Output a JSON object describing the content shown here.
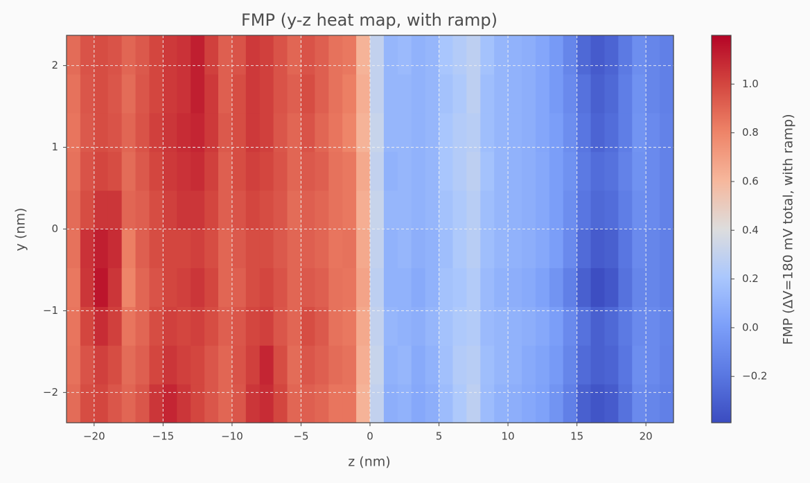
{
  "chart_data": {
    "type": "heatmap",
    "title": "FMP (y-z heat map, with ramp)",
    "x_label": "z (nm)",
    "y_label": "y (nm)",
    "colorbar_label": "FMP (ΔV=180 mV total, with ramp)",
    "colormap": "coolwarm",
    "grid": true,
    "xlim": [
      -22,
      22
    ],
    "ylim": [
      -2.37,
      2.37
    ],
    "clim": [
      -0.39,
      1.2
    ],
    "xticks": [
      {
        "value": -20,
        "label": "−20"
      },
      {
        "value": -15,
        "label": "−15"
      },
      {
        "value": -10,
        "label": "−10"
      },
      {
        "value": -5,
        "label": "−5"
      },
      0,
      5,
      10,
      15,
      20
    ],
    "yticks": [
      {
        "value": -2,
        "label": "−2"
      },
      {
        "value": -1,
        "label": "−1"
      },
      0,
      1,
      2
    ],
    "cticks": [
      {
        "value": -0.2,
        "label": "−0.2"
      },
      {
        "value": 0,
        "label": "0.0"
      },
      0.2,
      0.4,
      0.6,
      0.8,
      {
        "value": 1,
        "label": "1.0"
      }
    ],
    "x": [
      -21.5,
      -20.5,
      -19.5,
      -18.5,
      -17.5,
      -16.5,
      -15.5,
      -14.5,
      -13.5,
      -12.5,
      -11.5,
      -10.5,
      -9.5,
      -8.5,
      -7.5,
      -6.5,
      -5.5,
      -4.5,
      -3.5,
      -2.5,
      -1.5,
      -0.5,
      0.5,
      1.5,
      2.5,
      3.5,
      4.5,
      5.5,
      6.5,
      7.5,
      8.5,
      9.5,
      10.5,
      11.5,
      12.5,
      13.5,
      14.5,
      15.5,
      16.5,
      17.5,
      18.5,
      19.5,
      20.5,
      21.5
    ],
    "y": [
      -2.133,
      -1.659,
      -1.185,
      -0.711,
      -0.237,
      0.237,
      0.711,
      1.185,
      1.659,
      2.133
    ],
    "values": [
      [
        0.88,
        0.98,
        1.0,
        0.95,
        0.9,
        0.95,
        1.05,
        1.1,
        1.05,
        1.0,
        0.95,
        0.9,
        0.95,
        1.05,
        1.08,
        1.0,
        0.9,
        0.92,
        0.9,
        0.85,
        0.85,
        0.62,
        0.3,
        0.08,
        0.1,
        0.05,
        0.08,
        0.15,
        0.22,
        0.28,
        0.15,
        0.1,
        0.08,
        0.05,
        0.02,
        -0.05,
        -0.15,
        -0.3,
        -0.35,
        -0.32,
        -0.22,
        -0.1,
        -0.12,
        -0.15
      ],
      [
        0.86,
        0.96,
        1.02,
        0.98,
        0.88,
        0.92,
        1.0,
        1.05,
        1.02,
        1.0,
        0.95,
        0.9,
        0.96,
        1.02,
        1.1,
        0.98,
        0.88,
        0.95,
        0.92,
        0.88,
        0.86,
        0.64,
        0.32,
        0.1,
        0.12,
        0.06,
        0.1,
        0.17,
        0.24,
        0.26,
        0.16,
        0.12,
        0.1,
        0.06,
        0.03,
        -0.02,
        -0.12,
        -0.25,
        -0.3,
        -0.28,
        -0.2,
        -0.08,
        -0.1,
        -0.14
      ],
      [
        0.85,
        1.0,
        1.08,
        1.02,
        0.85,
        0.9,
        0.98,
        1.02,
        1.0,
        1.02,
        0.98,
        0.92,
        0.95,
        1.0,
        1.02,
        0.95,
        0.9,
        0.98,
        0.94,
        0.86,
        0.84,
        0.66,
        0.3,
        0.12,
        0.1,
        0.08,
        0.12,
        0.18,
        0.22,
        0.24,
        0.14,
        0.12,
        0.1,
        0.08,
        0.05,
        0.0,
        -0.1,
        -0.22,
        -0.3,
        -0.26,
        -0.18,
        -0.1,
        -0.1,
        -0.13
      ],
      [
        0.84,
        1.05,
        1.15,
        1.05,
        0.8,
        0.9,
        0.96,
        1.0,
        1.02,
        1.05,
        1.0,
        0.9,
        0.92,
        0.98,
        1.0,
        0.96,
        0.9,
        0.94,
        0.92,
        0.86,
        0.85,
        0.68,
        0.28,
        0.1,
        0.1,
        0.06,
        0.1,
        0.18,
        0.2,
        0.24,
        0.14,
        0.1,
        0.08,
        0.06,
        0.02,
        -0.05,
        -0.15,
        -0.3,
        -0.38,
        -0.34,
        -0.22,
        -0.12,
        -0.12,
        -0.15
      ],
      [
        0.86,
        1.06,
        1.12,
        1.08,
        0.82,
        0.92,
        0.98,
        1.0,
        1.0,
        1.02,
        0.98,
        0.9,
        0.94,
        0.98,
        0.98,
        0.94,
        0.9,
        0.92,
        0.9,
        0.85,
        0.86,
        0.66,
        0.3,
        0.1,
        0.12,
        0.08,
        0.1,
        0.16,
        0.22,
        0.26,
        0.16,
        0.12,
        0.1,
        0.08,
        0.05,
        0.0,
        -0.1,
        -0.25,
        -0.32,
        -0.3,
        -0.2,
        -0.1,
        -0.12,
        -0.15
      ],
      [
        0.88,
        0.98,
        1.05,
        1.05,
        0.9,
        0.92,
        0.98,
        1.02,
        1.05,
        1.05,
        1.0,
        0.92,
        0.96,
        1.0,
        0.98,
        0.95,
        0.88,
        0.92,
        0.9,
        0.86,
        0.84,
        0.64,
        0.32,
        0.12,
        0.12,
        0.1,
        0.12,
        0.18,
        0.22,
        0.26,
        0.16,
        0.12,
        0.1,
        0.08,
        0.05,
        0.0,
        -0.08,
        -0.2,
        -0.26,
        -0.24,
        -0.16,
        -0.08,
        -0.1,
        -0.14
      ],
      [
        0.86,
        0.96,
        1.0,
        0.98,
        0.88,
        0.94,
        1.0,
        1.04,
        1.06,
        1.08,
        1.02,
        0.92,
        0.98,
        1.02,
        1.0,
        0.96,
        0.9,
        0.94,
        0.92,
        0.86,
        0.84,
        0.66,
        0.3,
        0.1,
        0.12,
        0.1,
        0.12,
        0.2,
        0.24,
        0.28,
        0.18,
        0.12,
        0.1,
        0.08,
        0.05,
        0.0,
        -0.06,
        -0.18,
        -0.24,
        -0.22,
        -0.14,
        -0.06,
        -0.1,
        -0.14
      ],
      [
        0.85,
        0.94,
        0.98,
        0.96,
        0.9,
        0.96,
        1.02,
        1.05,
        1.08,
        1.1,
        1.04,
        0.94,
        0.98,
        1.04,
        1.02,
        0.95,
        0.9,
        0.96,
        0.9,
        0.85,
        0.8,
        0.62,
        0.32,
        0.12,
        0.12,
        0.1,
        0.12,
        0.2,
        0.24,
        0.26,
        0.16,
        0.12,
        0.1,
        0.08,
        0.04,
        0.0,
        -0.08,
        -0.2,
        -0.28,
        -0.24,
        -0.16,
        -0.05,
        -0.1,
        -0.14
      ],
      [
        0.86,
        0.95,
        0.98,
        0.95,
        0.88,
        0.95,
        1.0,
        1.04,
        1.06,
        1.12,
        1.04,
        0.92,
        0.98,
        1.04,
        1.02,
        0.96,
        0.92,
        0.98,
        0.92,
        0.86,
        0.82,
        0.64,
        0.3,
        0.12,
        0.12,
        0.1,
        0.12,
        0.18,
        0.22,
        0.28,
        0.16,
        0.12,
        0.1,
        0.08,
        0.04,
        -0.02,
        -0.1,
        -0.22,
        -0.3,
        -0.26,
        -0.16,
        -0.06,
        -0.12,
        -0.15
      ],
      [
        0.88,
        0.96,
        0.98,
        0.96,
        0.9,
        0.94,
        1.0,
        1.04,
        1.06,
        1.12,
        1.02,
        0.92,
        0.96,
        1.04,
        1.02,
        0.96,
        0.9,
        0.96,
        0.92,
        0.86,
        0.84,
        0.62,
        0.3,
        0.12,
        0.14,
        0.1,
        0.12,
        0.2,
        0.24,
        0.28,
        0.18,
        0.12,
        0.1,
        0.08,
        0.04,
        -0.02,
        -0.12,
        -0.26,
        -0.32,
        -0.28,
        -0.18,
        -0.08,
        -0.12,
        -0.15
      ]
    ]
  }
}
